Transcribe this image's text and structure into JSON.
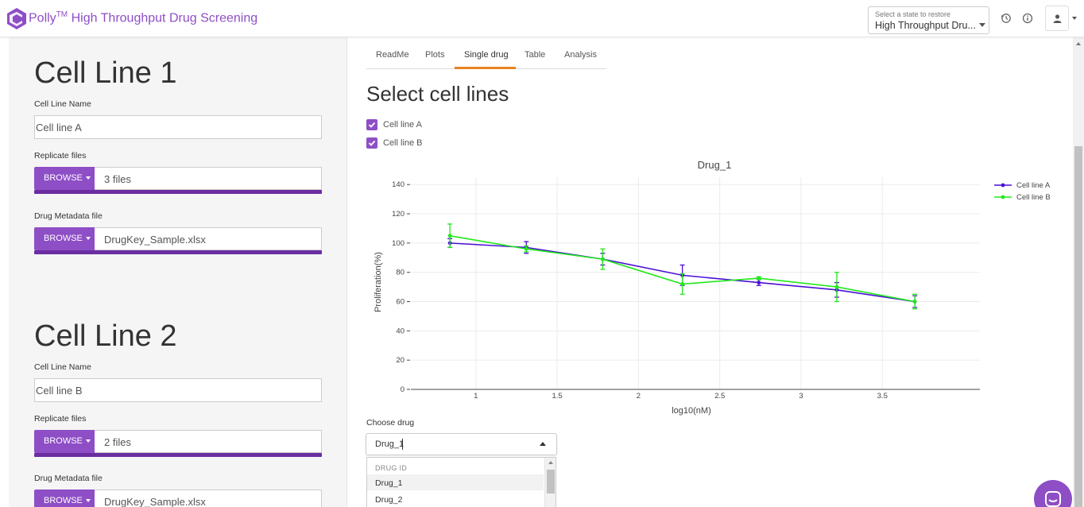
{
  "header": {
    "app_name": "Polly",
    "trademark": "TM",
    "app_subtitle": "High Throughput Drug Screening",
    "state_select": {
      "label": "Select a state to restore",
      "value": "High Throughput Dru..."
    },
    "icons": [
      "history-icon",
      "info-icon",
      "user-icon"
    ]
  },
  "left_panel": {
    "cell_lines": [
      {
        "title": "Cell Line 1",
        "name_label": "Cell Line Name",
        "name_value": "Cell line A",
        "replicate_label": "Replicate files",
        "replicate_button": "BROWSE",
        "replicate_value": "3 files",
        "replicate_progress": 1.0,
        "metadata_label": "Drug Metadata file",
        "metadata_button": "BROWSE",
        "metadata_value": "DrugKey_Sample.xlsx",
        "metadata_progress": 1.0
      },
      {
        "title": "Cell Line 2",
        "name_label": "Cell Line Name",
        "name_value": "Cell line B",
        "replicate_label": "Replicate files",
        "replicate_button": "BROWSE",
        "replicate_value": "2 files",
        "replicate_progress": 1.0,
        "metadata_label": "Drug Metadata file",
        "metadata_button": "BROWSE",
        "metadata_value": "DrugKey_Sample.xlsx"
      }
    ]
  },
  "tabs": {
    "items": [
      "ReadMe",
      "Plots",
      "Single drug",
      "Table",
      "Analysis"
    ],
    "active": "Single drug"
  },
  "main": {
    "section_title": "Select cell lines",
    "checkboxes": [
      {
        "label": "Cell line A",
        "checked": true
      },
      {
        "label": "Cell line B",
        "checked": true
      }
    ],
    "choose_drug": {
      "label": "Choose drug",
      "value": "Drug_1",
      "dropdown_header": "DRUG ID",
      "options": [
        "Drug_1",
        "Drug_2"
      ],
      "highlighted": "Drug_1"
    }
  },
  "chart_data": {
    "type": "line",
    "title": "Drug_1",
    "xlabel": "log10(nM)",
    "ylabel": "Proliferation(%)",
    "xlim": [
      0.6,
      4.1
    ],
    "ylim": [
      0,
      145
    ],
    "xticks": [
      "1",
      "1.5",
      "2",
      "2.5",
      "3",
      "3.5"
    ],
    "yticks": [
      "0",
      "20",
      "40",
      "60",
      "80",
      "100",
      "120",
      "140"
    ],
    "grid": true,
    "legend": "top-right",
    "error_bars": true,
    "series": [
      {
        "name": "Cell line A",
        "color": "#4b0fd6",
        "x": [
          0.84,
          1.31,
          1.78,
          2.27,
          2.74,
          3.22,
          3.7
        ],
        "y": [
          100,
          97,
          89,
          78,
          73,
          68,
          60
        ],
        "err": [
          3,
          4,
          4,
          7,
          2,
          5,
          4
        ]
      },
      {
        "name": "Cell line B",
        "color": "#22e81b",
        "x": [
          0.84,
          1.31,
          1.78,
          2.27,
          2.74,
          3.22,
          3.7
        ],
        "y": [
          105,
          96,
          89,
          72,
          76,
          70,
          60
        ],
        "err": [
          8,
          2,
          7,
          7,
          1,
          10,
          5
        ]
      }
    ]
  }
}
